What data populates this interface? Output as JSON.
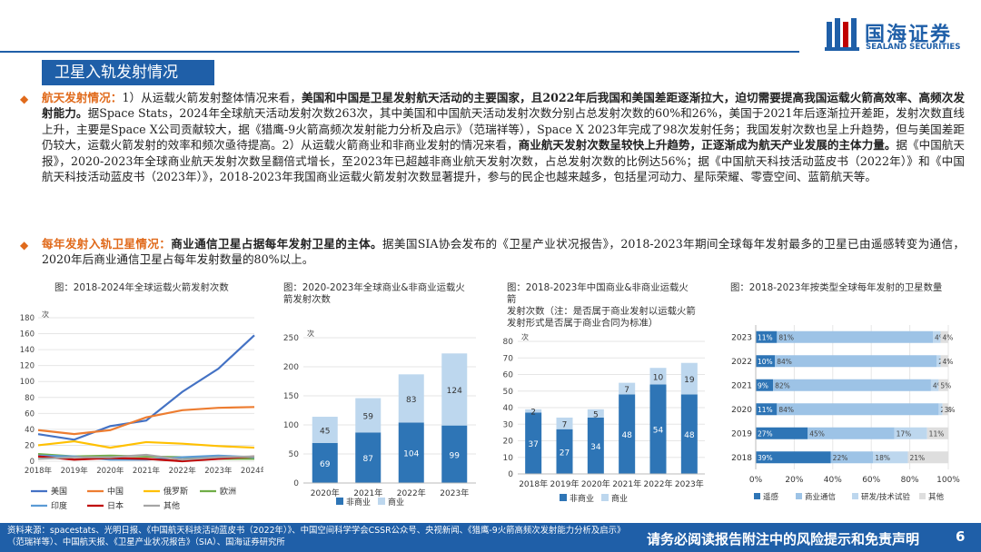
{
  "header": {
    "logo_cn": "国海证券",
    "logo_en": "SEALAND SECURITIES",
    "section_title": "卫星入轨发射情况"
  },
  "paragraphs": [
    {
      "lead": "航天发射情况：",
      "t1": "1）从运载火箭发射整体情况来看，",
      "b1": "美国和中国是卫星发射航天活动的主要国家，且2022年后我国和美国差距逐渐拉大，迫切需要提高我国运载火箭高效率、高频次发射能力。",
      "t2": "据Space Stats，2024年全球航天活动发射次数263次，其中美国和中国航天活动发射次数分别占总发射次数的60%和26%，美国于2021年后逐渐拉开差距，发射次数直线上升，主要是Space X公司贡献较大，据《猎鹰-9火箭高频次发射能力分析及启示》（范瑞祥等），Space X 2023年完成了98次发射任务；我国发射次数也呈上升趋势，但与美国差距仍较大，运载火箭发射的效率和频次亟待提高。2）从运载火箭商业和非商业发射的情况来看，",
      "b2": "商业航天发射次数呈较快上升趋势，正逐渐成为航天产业发展的主体力量。",
      "t3": "据《中国航天报》，2020-2023年全球商业航天发射次数呈翻倍式增长，至2023年已超越非商业航天发射次数，占总发射次数的比例达56%；据《中国航天科技活动蓝皮书（2022年）》和《中国航天科技活动蓝皮书（2023年）》，2018-2023年我国商业运载火箭发射次数显著提升，参与的民企也越来越多，包括星河动力、星际荣耀、零壹空间、蓝箭航天等。"
    },
    {
      "lead": "每年发射入轨卫星情况：",
      "b1": "商业通信卫星占据每年发射卫星的主体。",
      "t1": "据美国SIA协会发布的《卫星产业状况报告》，2018-2023年期间全球每年发射最多的卫星已由遥感转变为通信，2020年后商业通信卫星占每年发射数量的80%以上。"
    }
  ],
  "chart_data": [
    {
      "type": "line",
      "title": "图：2018-2024年全球运载火箭发射次数",
      "ylabel": "次",
      "categories": [
        "2018年",
        "2019年",
        "2020年",
        "2021年",
        "2022年",
        "2023年",
        "2024年"
      ],
      "ylim": [
        0,
        180
      ],
      "yticks": [
        "0",
        "20",
        "40",
        "60",
        "80",
        "100",
        "120",
        "140",
        "160",
        "180"
      ],
      "series": [
        {
          "name": "美国",
          "color": "#4472c4",
          "values": [
            34,
            27,
            44,
            51,
            87,
            116,
            158
          ]
        },
        {
          "name": "中国",
          "color": "#ed7d31",
          "values": [
            39,
            34,
            39,
            55,
            64,
            67,
            68
          ]
        },
        {
          "name": "俄罗斯",
          "color": "#ffc000",
          "values": [
            20,
            25,
            17,
            24,
            22,
            19,
            17
          ]
        },
        {
          "name": "欧洲",
          "color": "#70ad47",
          "values": [
            9,
            6,
            7,
            6,
            5,
            3,
            3
          ]
        },
        {
          "name": "印度",
          "color": "#5b9bd5",
          "values": [
            7,
            6,
            2,
            2,
            5,
            7,
            5
          ]
        },
        {
          "name": "日本",
          "color": "#c00000",
          "values": [
            6,
            2,
            4,
            3,
            0,
            3,
            6
          ]
        },
        {
          "name": "其他",
          "color": "#a5a5a5",
          "values": [
            3,
            5,
            5,
            8,
            2,
            5,
            6
          ]
        }
      ]
    },
    {
      "type": "bar",
      "stacked": true,
      "title": "图：2020-2023年全球商业&非商业运载火箭发射次数",
      "ylabel": "次",
      "categories": [
        "2020年",
        "2021年",
        "2022年",
        "2023年"
      ],
      "ylim": [
        0,
        250
      ],
      "yticks": [
        "0",
        "50",
        "100",
        "150",
        "200",
        "250"
      ],
      "series": [
        {
          "name": "非商业",
          "color": "#2e75b6",
          "values": [
            69,
            87,
            104,
            99
          ]
        },
        {
          "name": "商业",
          "color": "#bdd7ee",
          "values": [
            45,
            59,
            83,
            124
          ]
        }
      ]
    },
    {
      "type": "bar",
      "stacked": true,
      "title": "图：2018-2023年中国商业&非商业运载火箭发射次数（注：是否属于商业发射以运载火箭发射形式是否属于商业合同为标准）",
      "title_lines": [
        "图：2018-2023年中国商业&非商业运载火箭",
        "发射次数（注：是否属于商业发射以运载火箭",
        "发射形式是否属于商业合同为标准）"
      ],
      "ylabel": "次",
      "categories": [
        "2018年",
        "2019年",
        "2020年",
        "2021年",
        "2022年",
        "2023年"
      ],
      "ylim": [
        0,
        80
      ],
      "yticks": [
        "0",
        "10",
        "20",
        "30",
        "40",
        "50",
        "60",
        "70",
        "80"
      ],
      "series": [
        {
          "name": "非商业",
          "color": "#2e75b6",
          "values": [
            37,
            27,
            34,
            48,
            54,
            48
          ]
        },
        {
          "name": "商业",
          "color": "#bdd7ee",
          "values": [
            2,
            7,
            5,
            7,
            10,
            19
          ]
        }
      ]
    },
    {
      "type": "bar",
      "orientation": "horizontal",
      "stacked_percent": true,
      "title": "图：2018-2023年按类型全球每年发射的卫星数量",
      "categories": [
        "2023",
        "2022",
        "2021",
        "2020",
        "2019",
        "2018"
      ],
      "xticks": [
        "0%",
        "20%",
        "40%",
        "60%",
        "80%",
        "100%"
      ],
      "series": [
        {
          "name": "遥感",
          "color": "#2e75b6",
          "values": [
            11,
            10,
            9,
            11,
            27,
            39
          ],
          "labels": [
            "11%",
            "10%",
            "9%",
            "11%",
            "27%",
            "39%"
          ]
        },
        {
          "name": "商业通信",
          "color": "#9dc3e6",
          "values": [
            81,
            84,
            82,
            84,
            45,
            22
          ],
          "labels": [
            "81%",
            "84%",
            "82%",
            "84%",
            "45%",
            "22%"
          ]
        },
        {
          "name": "研发/技术试验",
          "color": "#bdd7ee",
          "values": [
            4,
            2,
            4,
            2,
            17,
            18
          ],
          "labels": [
            "4%",
            "2%",
            "4%",
            "2%",
            "17%",
            "18%"
          ]
        },
        {
          "name": "其他",
          "color": "#dedede",
          "values": [
            4,
            4,
            5,
            3,
            11,
            21
          ],
          "labels": [
            "4%",
            "4%",
            "5%",
            "3%",
            "11%",
            "21%"
          ]
        }
      ]
    }
  ],
  "footer": {
    "source": "资料来源：spacestats、光明日报、《中国航天科技活动蓝皮书（2022年）》、中国空间科学学会CSSR公众号、央视新闻、《猎鹰-9火箭高频次发射能力分析及启示》（范瑞祥等）、中国航天报、《卫星产业状况报告》（SIA）、国海证券研究所",
    "disclaimer": "请务必阅读报告附注中的风险提示和免责声明",
    "page": "6"
  }
}
